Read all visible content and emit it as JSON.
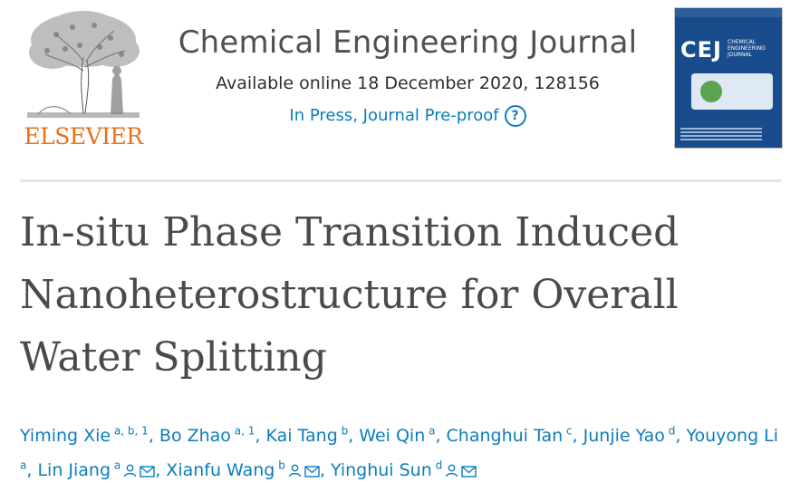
{
  "publisher": {
    "logo_text": "ELSEVIER"
  },
  "journal": {
    "title": "Chemical Engineering Journal",
    "available": "Available online 18 December 2020, 128156",
    "status": "In Press, Journal Pre-proof",
    "help_glyph": "?"
  },
  "cover": {
    "abbr": "CEJ",
    "subtitle": "CHEMICAL ENGINEERING JOURNAL"
  },
  "article": {
    "title": "In-situ Phase Transition Induced Nanoheterostructure for Overall Water Splitting"
  },
  "authors": [
    {
      "name": "Yiming Xie",
      "affil": "a, b, 1",
      "person_icon": false,
      "mail_icon": false
    },
    {
      "name": "Bo Zhao",
      "affil": "a, 1",
      "person_icon": false,
      "mail_icon": false
    },
    {
      "name": "Kai Tang",
      "affil": "b",
      "person_icon": false,
      "mail_icon": false
    },
    {
      "name": "Wei Qin",
      "affil": "a",
      "person_icon": false,
      "mail_icon": false
    },
    {
      "name": "Changhui Tan",
      "affil": "c",
      "person_icon": false,
      "mail_icon": false
    },
    {
      "name": "Junjie Yao",
      "affil": "d",
      "person_icon": false,
      "mail_icon": false
    },
    {
      "name": "Youyong Li",
      "affil": "a",
      "person_icon": false,
      "mail_icon": false
    },
    {
      "name": "Lin Jiang",
      "affil": "a",
      "person_icon": true,
      "mail_icon": true
    },
    {
      "name": "Xianfu Wang",
      "affil": "b",
      "person_icon": true,
      "mail_icon": true
    },
    {
      "name": "Yinghui Sun",
      "affil": "d",
      "person_icon": true,
      "mail_icon": true
    }
  ],
  "colors": {
    "link": "#0c7dbb",
    "elsevier_orange": "#e9711c",
    "title_gray": "#4a4a4a"
  }
}
